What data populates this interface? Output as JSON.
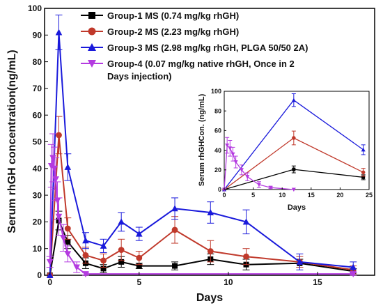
{
  "colors": {
    "group1": "#000000",
    "group2": "#c0392b",
    "group3": "#1a1adb",
    "group4": "#b43be0"
  },
  "chart_data": [
    {
      "type": "line",
      "xlabel": "Days",
      "ylabel": "Serum rhGH concentration(ng/mL)",
      "xlim": [
        -0.3,
        18.2
      ],
      "ylim": [
        0,
        100
      ],
      "xticks": [
        0,
        5,
        10,
        15
      ],
      "yticks": [
        0,
        10,
        20,
        30,
        40,
        50,
        60,
        70,
        80,
        90,
        100
      ],
      "grid": false,
      "legend_position": "top-right",
      "series": [
        {
          "name": "Group-1 MS (0.74 mg/kg rhGH)",
          "color": "#000000",
          "marker": "square",
          "x": [
            0,
            0.5,
            1,
            2,
            3,
            4,
            5,
            7,
            9,
            11,
            14,
            17
          ],
          "y": [
            0,
            20.5,
            12.5,
            4.5,
            2.5,
            5,
            3.5,
            3.5,
            6,
            4,
            4.5,
            1.5
          ],
          "err": [
            0,
            3.5,
            2.5,
            2,
            1.5,
            2,
            1,
            1.5,
            2,
            2,
            1.5,
            1
          ]
        },
        {
          "name": "Group-2 MS (2.23 mg/kg rhGH)",
          "color": "#c0392b",
          "marker": "circle",
          "x": [
            0,
            0.5,
            1,
            2,
            3,
            4,
            5,
            7,
            9,
            11,
            14,
            17
          ],
          "y": [
            0,
            52.5,
            17.5,
            7.5,
            5.5,
            9.5,
            6.5,
            17,
            9,
            7,
            5,
            2
          ],
          "err": [
            0,
            7,
            4,
            3,
            2.5,
            4,
            2.5,
            5,
            4,
            3,
            2,
            1.5
          ]
        },
        {
          "name": "Group-3 MS (2.98 mg/kg rhGH, PLGA 50/50 2A)",
          "color": "#1a1adb",
          "marker": "triangle",
          "x": [
            0,
            0.5,
            1,
            2,
            3,
            4,
            5,
            7,
            9,
            11,
            14,
            17
          ],
          "y": [
            0,
            91,
            40.5,
            13,
            11,
            20,
            15.5,
            25,
            23.5,
            20,
            5,
            3
          ],
          "err": [
            0,
            6.5,
            5,
            3,
            2.5,
            3.5,
            2.5,
            4,
            4,
            4.5,
            3,
            2
          ]
        },
        {
          "name": "Group-4 (0.07 mg/kg native rhGH, Once in 2 Days injection)",
          "color": "#b43be0",
          "marker": "triangle-down",
          "x": [
            0,
            0.08,
            0.17,
            0.25,
            0.33,
            0.42,
            0.5,
            0.75,
            1,
            1.5,
            2,
            17
          ],
          "y": [
            5,
            41,
            44,
            40,
            36,
            28,
            22,
            14,
            8,
            3,
            0.5,
            0.5
          ],
          "err": [
            2,
            8,
            9,
            8,
            8,
            7,
            7,
            5,
            3,
            2,
            0.5,
            0.5
          ]
        }
      ]
    },
    {
      "type": "line",
      "role": "inset",
      "xlabel": "Days",
      "ylabel": "Serum rhGHCon. (ng/mL)",
      "xlim": [
        0,
        25
      ],
      "ylim": [
        0,
        100
      ],
      "xticks": [
        0,
        5,
        10,
        15,
        20,
        25
      ],
      "yticks": [
        0,
        20,
        40,
        60,
        80,
        100
      ],
      "series": [
        {
          "color": "#000000",
          "marker": "square",
          "x": [
            0,
            12,
            24
          ],
          "y": [
            0,
            20.5,
            12.5
          ],
          "err": [
            0,
            3.5,
            2.5
          ]
        },
        {
          "color": "#c0392b",
          "marker": "circle",
          "x": [
            0,
            12,
            24
          ],
          "y": [
            0,
            52.5,
            17.5
          ],
          "err": [
            0,
            7,
            4
          ]
        },
        {
          "color": "#1a1adb",
          "marker": "triangle",
          "x": [
            0,
            12,
            24
          ],
          "y": [
            0,
            91,
            40.5
          ],
          "err": [
            0,
            6.5,
            5
          ]
        },
        {
          "color": "#b43be0",
          "marker": "triangle-down",
          "x": [
            0,
            0.5,
            1,
            1.5,
            2,
            3,
            4,
            6,
            8,
            12
          ],
          "y": [
            0,
            45,
            42,
            36,
            28,
            20,
            13,
            5,
            2,
            0
          ],
          "err": [
            0,
            8,
            8,
            7,
            6,
            5,
            4,
            3,
            1,
            0
          ]
        }
      ]
    }
  ]
}
